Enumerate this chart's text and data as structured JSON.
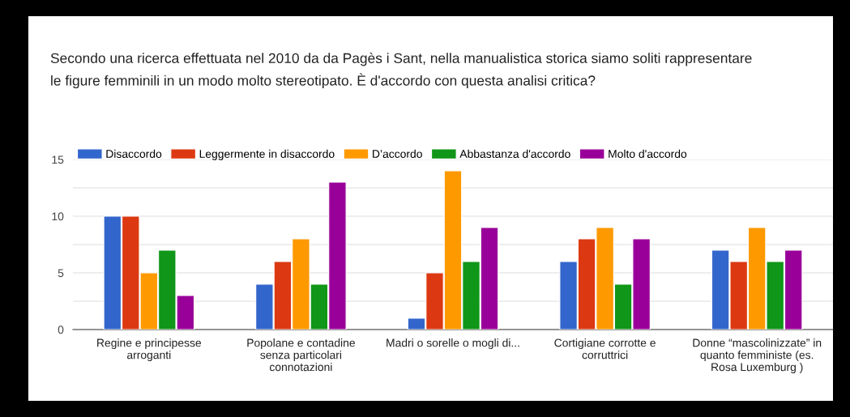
{
  "chart_data": {
    "type": "bar",
    "title": "Secondo una ricerca effettuata nel 2010 da da Pagès i Sant, nella manualistica storica siamo soliti rappresentare\nle figure femminili in un modo molto stereotipato. È d'accordo con questa analisi critica?",
    "categories": [
      "Regine e principesse\narroganti",
      "Popolane e contadine\nsenza particolari\nconnotazioni",
      "Madri o sorelle o mogli di...",
      "Cortigiane corrotte e\ncorruttrici",
      "Donne “mascolinizzate” in\nquanto femministe (es.\nRosa Luxemburg )"
    ],
    "series": [
      {
        "name": "Disaccordo",
        "color": "#3366cc",
        "values": [
          10,
          4,
          1,
          6,
          7
        ]
      },
      {
        "name": "Leggermente in disaccordo",
        "color": "#dc3912",
        "values": [
          10,
          6,
          5,
          8,
          6
        ]
      },
      {
        "name": "D’accordo",
        "color": "#ff9900",
        "values": [
          5,
          8,
          14,
          9,
          9
        ]
      },
      {
        "name": "Abbastanza d'accordo",
        "color": "#109618",
        "values": [
          7,
          4,
          6,
          4,
          6
        ]
      },
      {
        "name": "Molto d'accordo",
        "color": "#990099",
        "values": [
          3,
          13,
          9,
          8,
          7
        ]
      }
    ],
    "ylim": [
      0,
      15
    ],
    "yticks": [
      0,
      {
        "value": 2.5,
        "label": null
      },
      5,
      {
        "value": 7.5,
        "label": null
      },
      10,
      {
        "value": 12.5,
        "label": null
      },
      15
    ],
    "grid": "y",
    "legend": "top"
  }
}
